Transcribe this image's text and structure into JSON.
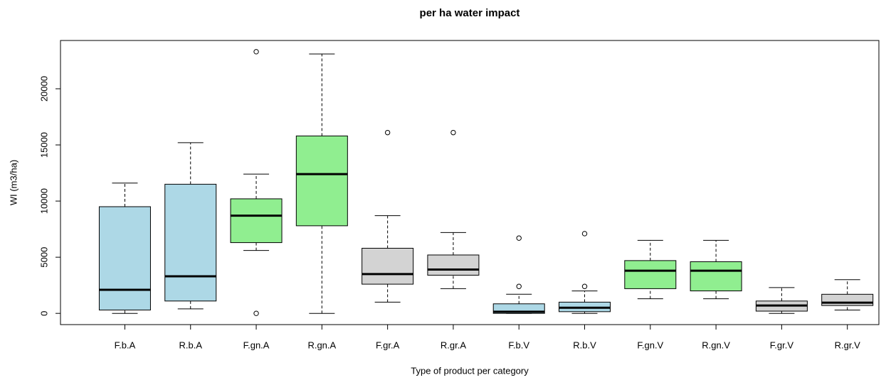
{
  "chart_data": {
    "type": "box",
    "title": "per ha water impact",
    "x_label": "Type of product per category",
    "y_label": "WI (m3/ha)",
    "categories": [
      "F.b.A",
      "R.b.A",
      "F.gn.A",
      "R.gn.A",
      "F.gr.A",
      "R.gr.A",
      "F.b.V",
      "R.b.V",
      "F.gn.V",
      "R.gn.V",
      "F.gr.V",
      "R.gr.V"
    ],
    "colors": [
      "#add8e6",
      "#add8e6",
      "#90ee90",
      "#90ee90",
      "#d3d3d3",
      "#d3d3d3",
      "#add8e6",
      "#add8e6",
      "#90ee90",
      "#90ee90",
      "#d3d3d3",
      "#d3d3d3"
    ],
    "boxes": [
      {
        "min": 0,
        "q1": 300,
        "median": 2100,
        "q3": 9500,
        "max": 11600,
        "outliers": []
      },
      {
        "min": 400,
        "q1": 1100,
        "median": 3300,
        "q3": 11500,
        "max": 15200,
        "outliers": []
      },
      {
        "min": 5600,
        "q1": 6300,
        "median": 8700,
        "q3": 10200,
        "max": 12400,
        "outliers": [
          23300,
          0
        ]
      },
      {
        "min": 0,
        "q1": 7800,
        "median": 12400,
        "q3": 15800,
        "max": 23100,
        "outliers": []
      },
      {
        "min": 1000,
        "q1": 2600,
        "median": 3500,
        "q3": 5800,
        "max": 8700,
        "outliers": [
          16100
        ]
      },
      {
        "min": 2200,
        "q1": 3400,
        "median": 3900,
        "q3": 5200,
        "max": 7200,
        "outliers": [
          16100
        ]
      },
      {
        "min": 0,
        "q1": 0,
        "median": 150,
        "q3": 850,
        "max": 1700,
        "outliers": [
          2400,
          6700
        ]
      },
      {
        "min": 0,
        "q1": 150,
        "median": 500,
        "q3": 1000,
        "max": 2000,
        "outliers": [
          2400,
          7100
        ]
      },
      {
        "min": 1300,
        "q1": 2200,
        "median": 3800,
        "q3": 4700,
        "max": 6500,
        "outliers": []
      },
      {
        "min": 1300,
        "q1": 2000,
        "median": 3800,
        "q3": 4600,
        "max": 6500,
        "outliers": []
      },
      {
        "min": 0,
        "q1": 200,
        "median": 700,
        "q3": 1100,
        "max": 2300,
        "outliers": []
      },
      {
        "min": 300,
        "q1": 700,
        "median": 950,
        "q3": 1700,
        "max": 3000,
        "outliers": []
      }
    ],
    "ylim": [
      -1000,
      24300
    ],
    "yticks": [
      0,
      5000,
      10000,
      15000,
      20000
    ]
  }
}
